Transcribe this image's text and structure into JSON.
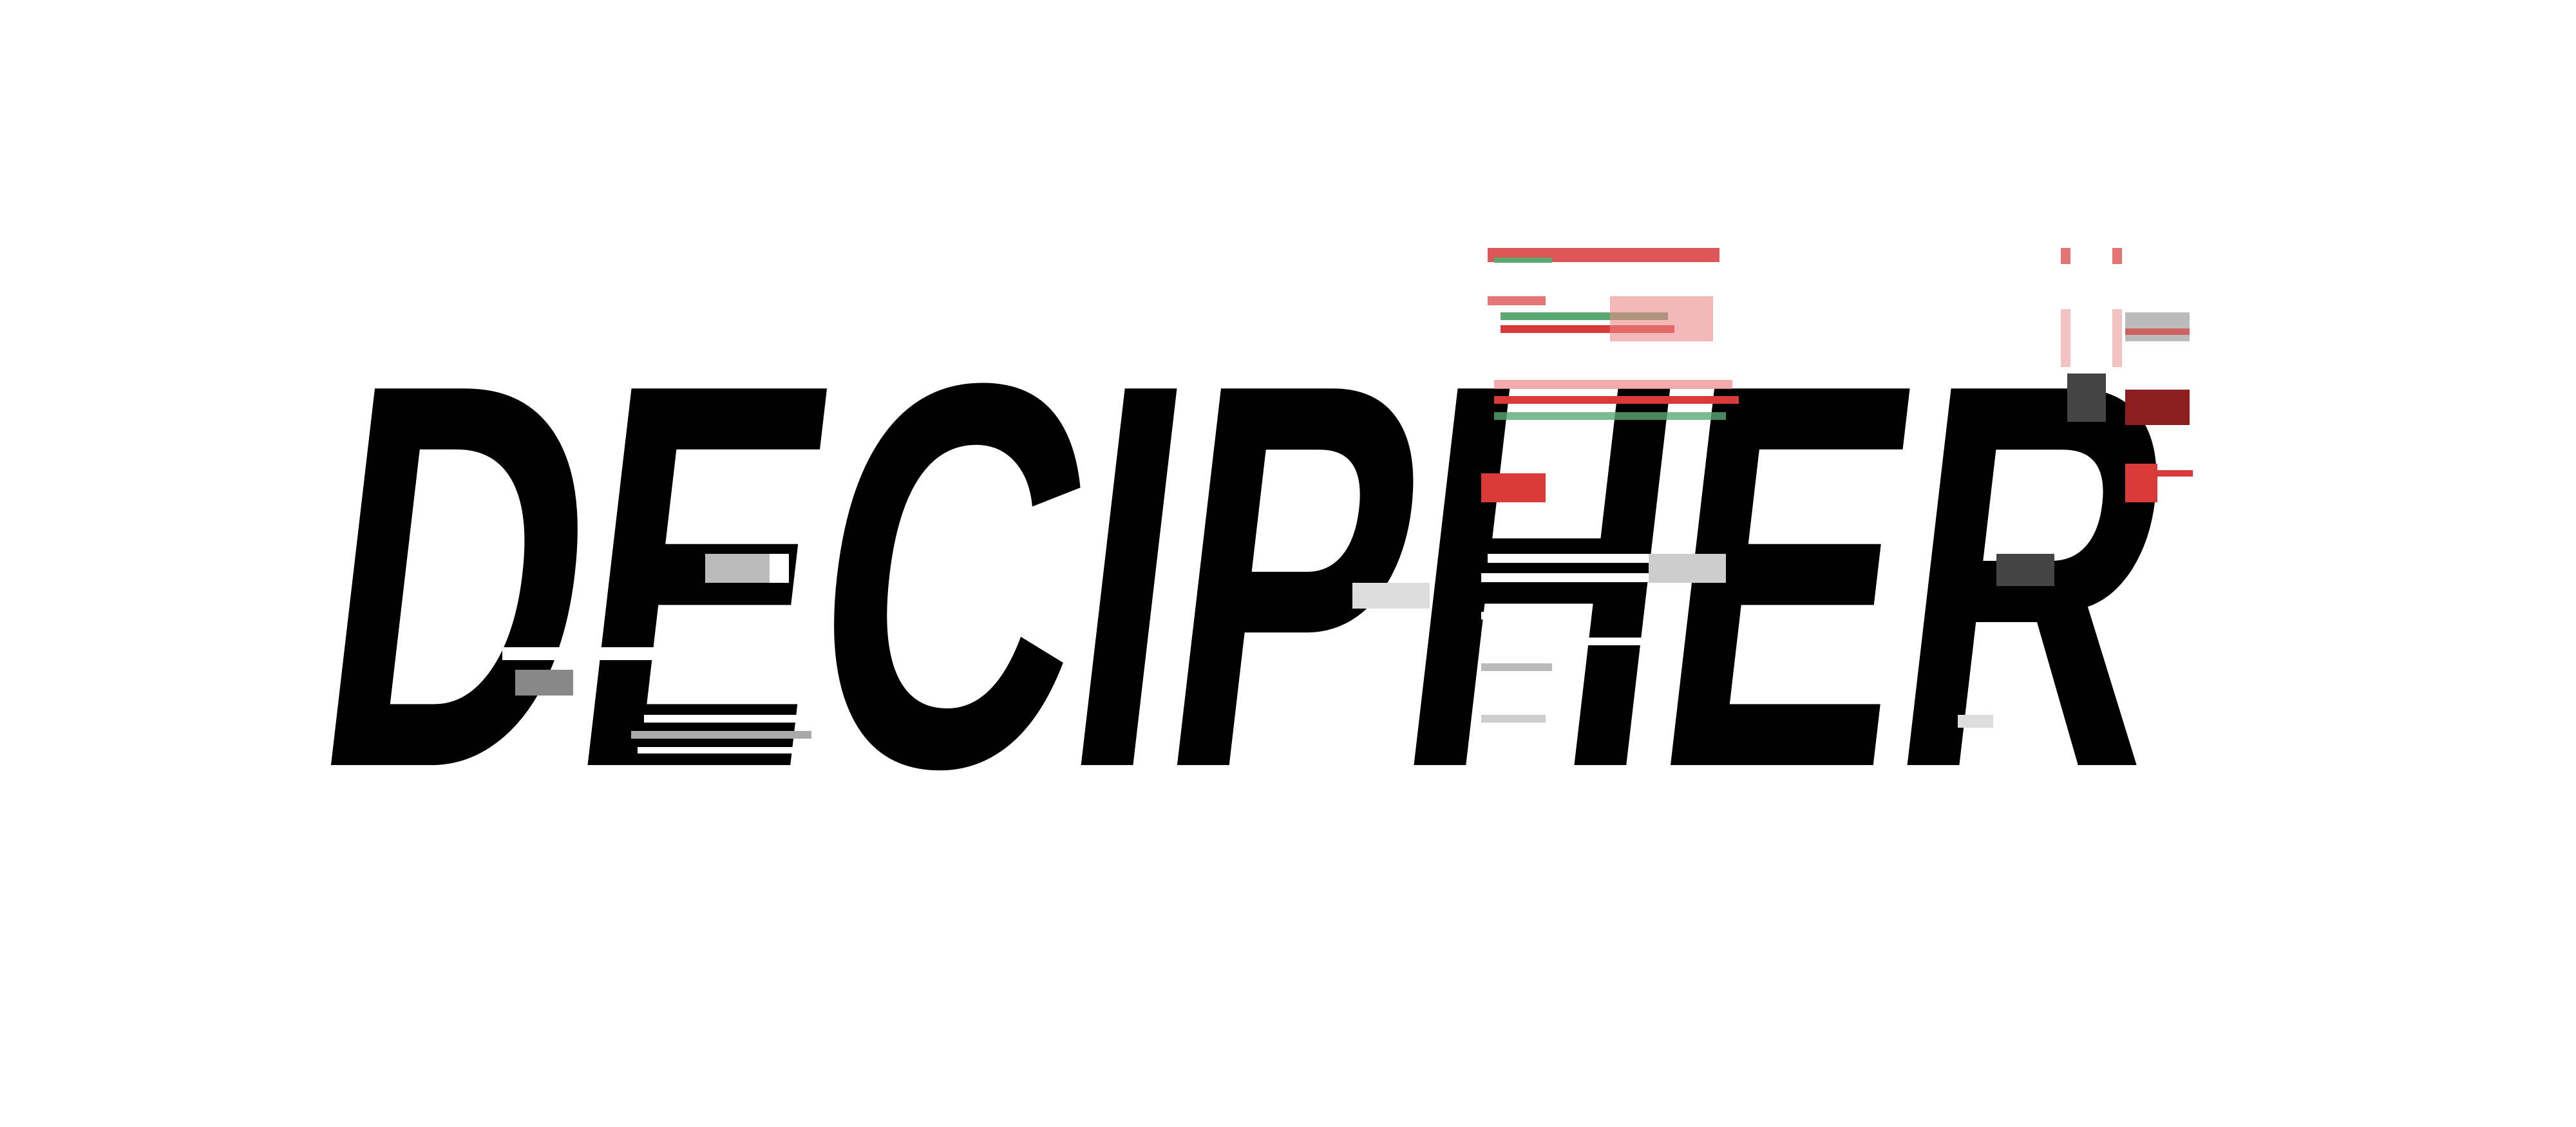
{
  "logo": {
    "wordmark": "DECIPHER",
    "colors": {
      "text": "#000000",
      "background": "#ffffff",
      "glitch_red": "#d83a3a",
      "glitch_green": "#5aa872",
      "glitch_gray": "#9a9a9a"
    }
  }
}
